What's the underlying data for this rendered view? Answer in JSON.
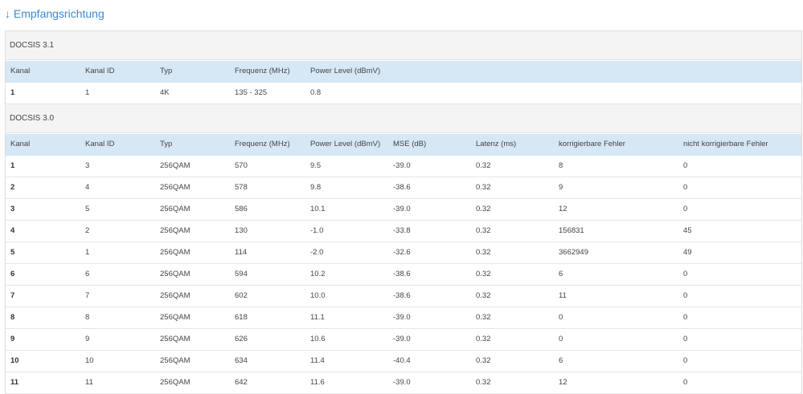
{
  "header": {
    "title": "↓ Empfangsrichtung"
  },
  "sections": [
    {
      "title": "DOCSIS 3.1",
      "columns": [
        "Kanal",
        "Kanal ID",
        "Typ",
        "Frequenz (MHz)",
        "Power Level (dBmV)"
      ],
      "rows": [
        [
          "1",
          "1",
          "4K",
          "135 - 325",
          "0.8"
        ]
      ]
    },
    {
      "title": "DOCSIS 3.0",
      "columns": [
        "Kanal",
        "Kanal ID",
        "Typ",
        "Frequenz (MHz)",
        "Power Level (dBmV)",
        "MSE (dB)",
        "Latenz (ms)",
        "korrigierbare Fehler",
        "nicht korrigierbare Fehler"
      ],
      "rows": [
        [
          "1",
          "3",
          "256QAM",
          "570",
          "9.5",
          "-39.0",
          "0.32",
          "8",
          "0"
        ],
        [
          "2",
          "4",
          "256QAM",
          "578",
          "9.8",
          "-38.6",
          "0.32",
          "9",
          "0"
        ],
        [
          "3",
          "5",
          "256QAM",
          "586",
          "10.1",
          "-39.0",
          "0.32",
          "12",
          "0"
        ],
        [
          "4",
          "2",
          "256QAM",
          "130",
          "-1.0",
          "-33.8",
          "0.32",
          "156831",
          "45"
        ],
        [
          "5",
          "1",
          "256QAM",
          "114",
          "-2.0",
          "-32.6",
          "0.32",
          "3662949",
          "49"
        ],
        [
          "6",
          "6",
          "256QAM",
          "594",
          "10.2",
          "-38.6",
          "0.32",
          "6",
          "0"
        ],
        [
          "7",
          "7",
          "256QAM",
          "602",
          "10.0",
          "-38.6",
          "0.32",
          "11",
          "0"
        ],
        [
          "8",
          "8",
          "256QAM",
          "618",
          "11.1",
          "-39.0",
          "0.32",
          "0",
          "0"
        ],
        [
          "9",
          "9",
          "256QAM",
          "626",
          "10.6",
          "-39.0",
          "0.32",
          "0",
          "0"
        ],
        [
          "10",
          "10",
          "256QAM",
          "634",
          "11.4",
          "-40.4",
          "0.32",
          "6",
          "0"
        ],
        [
          "11",
          "11",
          "256QAM",
          "642",
          "11.6",
          "-39.0",
          "0.32",
          "12",
          "0"
        ]
      ]
    }
  ]
}
